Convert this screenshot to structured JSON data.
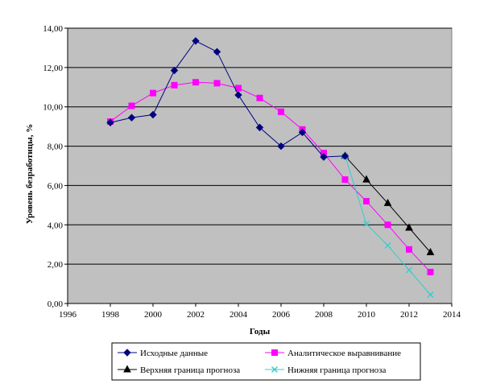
{
  "chart_data": {
    "type": "line",
    "title": "",
    "xlabel": "Годы",
    "ylabel": "Уровень безработицы, %",
    "xlim": [
      1996,
      2014
    ],
    "ylim": [
      0,
      14
    ],
    "x_ticks": [
      "1996",
      "1998",
      "2000",
      "2002",
      "2004",
      "2006",
      "2008",
      "2010",
      "2012",
      "2014"
    ],
    "y_ticks": [
      "0,00",
      "2,00",
      "4,00",
      "6,00",
      "8,00",
      "10,00",
      "12,00",
      "14,00"
    ],
    "grid": "horizontal",
    "legend_position": "bottom",
    "series": [
      {
        "name": "Исходные данные",
        "color": "#000080",
        "marker": "diamond",
        "x": [
          1998,
          1999,
          2000,
          2001,
          2002,
          2003,
          2004,
          2005,
          2006,
          2007,
          2008,
          2009
        ],
        "y": [
          9.2,
          9.45,
          9.6,
          11.85,
          13.35,
          12.8,
          10.6,
          8.95,
          8.0,
          8.7,
          7.45,
          7.5
        ]
      },
      {
        "name": "Аналитическое выравнивание",
        "color": "#ff00ff",
        "marker": "square",
        "x": [
          1998,
          1999,
          2000,
          2001,
          2002,
          2003,
          2004,
          2005,
          2006,
          2007,
          2008,
          2009,
          2010,
          2011,
          2012,
          2013
        ],
        "y": [
          9.25,
          10.05,
          10.7,
          11.1,
          11.25,
          11.2,
          10.95,
          10.45,
          9.75,
          8.85,
          7.65,
          6.3,
          5.2,
          4.0,
          2.75,
          1.6
        ]
      },
      {
        "name": "Верхняя граница прогноза",
        "color": "#000000",
        "marker": "triangle",
        "x": [
          2009,
          2010,
          2011,
          2012,
          2013
        ],
        "y": [
          7.5,
          6.3,
          5.1,
          3.85,
          2.6
        ]
      },
      {
        "name": "Нижняя граница прогноза",
        "color": "#33cccc",
        "marker": "x",
        "x": [
          2009,
          2010,
          2011,
          2012,
          2013
        ],
        "y": [
          7.5,
          4.05,
          2.95,
          1.7,
          0.45
        ]
      }
    ]
  },
  "colors": {
    "plot_background": "#c0c0c0",
    "gridline": "#000000",
    "page_background": "#ffffff"
  }
}
